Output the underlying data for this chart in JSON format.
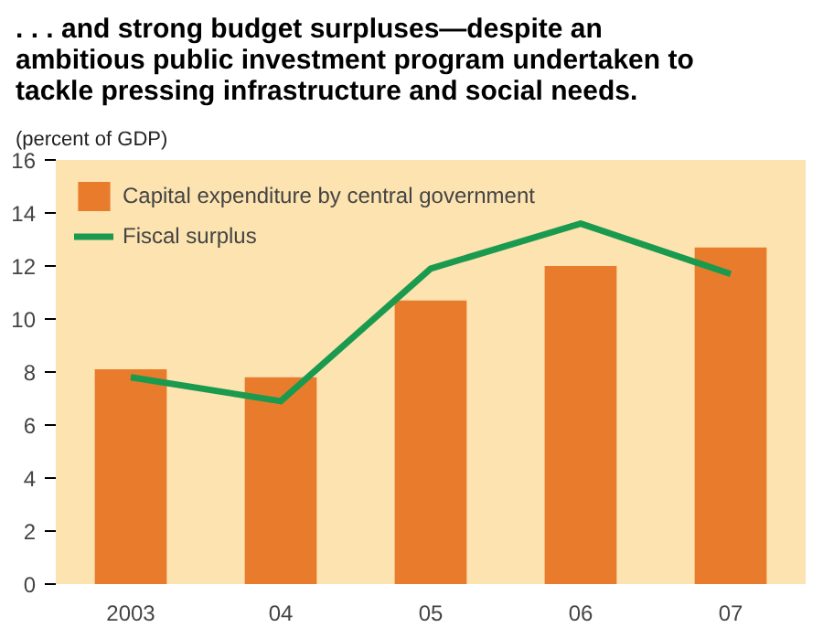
{
  "chart_data": {
    "type": "bar",
    "title": ". . . and strong budget surpluses—despite an ambitious public investment program undertaken to tackle pressing infrastructure and social needs.",
    "ylabel": "(percent of GDP)",
    "categories": [
      "2003",
      "04",
      "05",
      "06",
      "07"
    ],
    "series": [
      {
        "name": "Capital expenditure by central government",
        "color": "#e87c2c",
        "values": [
          8.1,
          7.8,
          10.7,
          12.0,
          12.7
        ]
      },
      {
        "name": "Fiscal surplus",
        "type": "line",
        "color": "#1a9a4e",
        "values": [
          7.8,
          6.9,
          11.9,
          13.6,
          11.7
        ]
      }
    ],
    "ylim": [
      0,
      16
    ],
    "yticks": [
      0,
      2,
      4,
      6,
      8,
      10,
      12,
      14,
      16
    ],
    "grid": false,
    "legend": "top left"
  }
}
